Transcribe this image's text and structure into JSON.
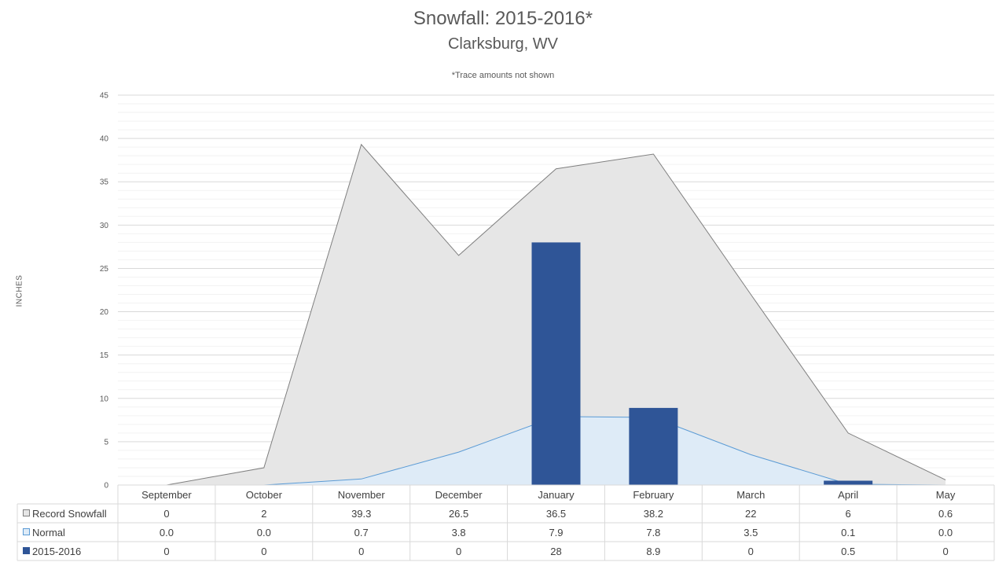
{
  "chart_data": {
    "type": "area",
    "title": "Snowfall: 2015-2016*",
    "subtitle": "Clarksburg, WV",
    "note": "*Trace amounts not shown",
    "ylabel": "INCHES",
    "ylim": [
      0,
      45
    ],
    "yticks": [
      "0",
      "5",
      "10",
      "15",
      "20",
      "25",
      "30",
      "35",
      "40",
      "45"
    ],
    "grid": true,
    "legend": "data-table-left",
    "categories": [
      "September",
      "October",
      "November",
      "December",
      "January",
      "February",
      "March",
      "April",
      "May"
    ],
    "series": [
      {
        "name": "Record Snowfall",
        "kind": "area",
        "color": "#e6e6e6",
        "stroke": "#7f7f7f",
        "values": [
          0,
          2,
          39.3,
          26.5,
          36.5,
          38.2,
          22,
          6,
          0.6
        ],
        "labels": [
          "0",
          "2",
          "39.3",
          "26.5",
          "36.5",
          "38.2",
          "22",
          "6",
          "0.6"
        ]
      },
      {
        "name": "Normal",
        "kind": "area",
        "color": "#deebf7",
        "stroke": "#5b9bd5",
        "values": [
          0.0,
          0.0,
          0.7,
          3.8,
          7.9,
          7.8,
          3.5,
          0.1,
          0.0
        ],
        "labels": [
          "0.0",
          "0.0",
          "0.7",
          "3.8",
          "7.9",
          "7.8",
          "3.5",
          "0.1",
          "0.0"
        ]
      },
      {
        "name": "2015-2016",
        "kind": "bar",
        "color": "#2f5597",
        "values": [
          0,
          0,
          0,
          0,
          28,
          8.9,
          0,
          0.5,
          0
        ],
        "labels": [
          "0",
          "0",
          "0",
          "0",
          "28",
          "8.9",
          "0",
          "0.5",
          "0"
        ]
      }
    ]
  }
}
